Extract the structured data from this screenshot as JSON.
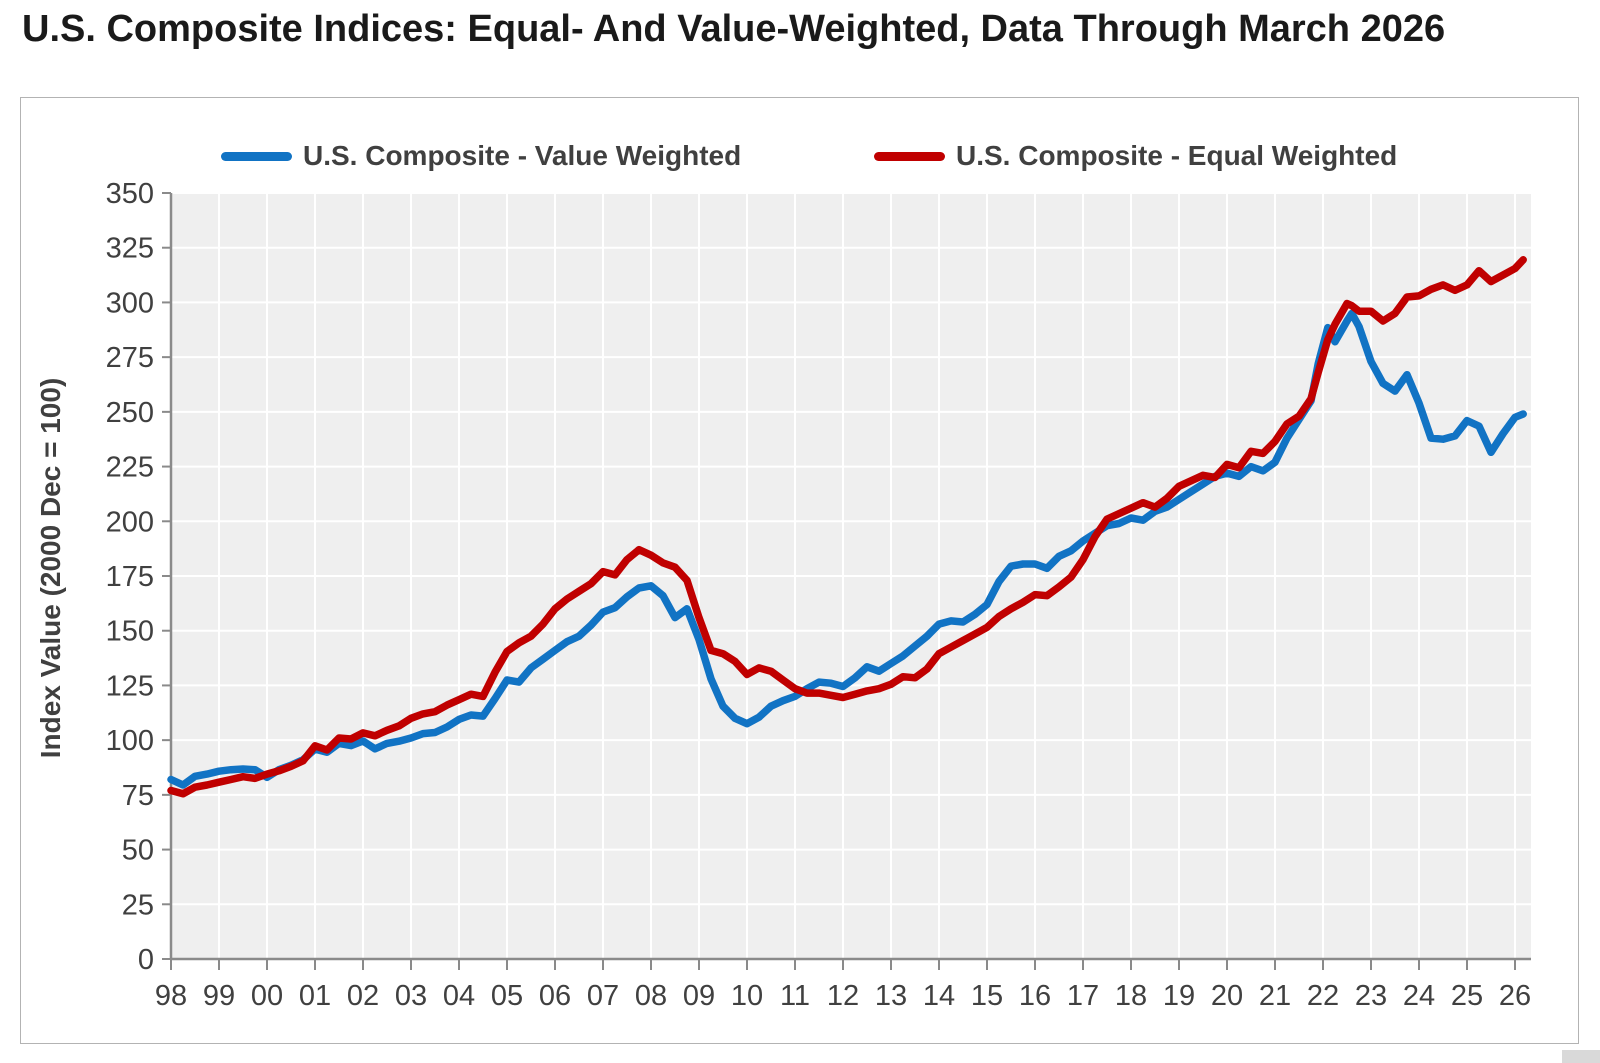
{
  "page": {
    "title": "U.S. Composite Indices: Equal- And Value-Weighted, Data Through March 2026"
  },
  "colors": {
    "value_weighted": "#1173c4",
    "equal_weighted": "#c00000",
    "plot_background": "#efefef",
    "gridline": "#ffffff",
    "axis": "#8a8a8a",
    "label_text": "#404040",
    "frame_border": "#b3b3b3"
  },
  "chart_data": {
    "type": "line",
    "title": "U.S. Composite Indices: Equal- And Value-Weighted, Data Through March 2026",
    "xlabel": "",
    "ylabel": "Index Value (2000 Dec = 100)",
    "ylim": [
      0,
      350
    ],
    "ytick_step": 25,
    "grid": true,
    "legend_position": "top",
    "plot_bg": "#efefef",
    "xticks": [
      {
        "y": 1998,
        "l": "98"
      },
      {
        "y": 1999,
        "l": "99"
      },
      {
        "y": 2000,
        "l": "00"
      },
      {
        "y": 2001,
        "l": "01"
      },
      {
        "y": 2002,
        "l": "02"
      },
      {
        "y": 2003,
        "l": "03"
      },
      {
        "y": 2004,
        "l": "04"
      },
      {
        "y": 2005,
        "l": "05"
      },
      {
        "y": 2006,
        "l": "06"
      },
      {
        "y": 2007,
        "l": "07"
      },
      {
        "y": 2008,
        "l": "08"
      },
      {
        "y": 2009,
        "l": "09"
      },
      {
        "y": 2010,
        "l": "10"
      },
      {
        "y": 2011,
        "l": "11"
      },
      {
        "y": 2012,
        "l": "12"
      },
      {
        "y": 2013,
        "l": "13"
      },
      {
        "y": 2014,
        "l": "14"
      },
      {
        "y": 2015,
        "l": "15"
      },
      {
        "y": 2016,
        "l": "16"
      },
      {
        "y": 2017,
        "l": "17"
      },
      {
        "y": 2018,
        "l": "18"
      },
      {
        "y": 2019,
        "l": "19"
      },
      {
        "y": 2020,
        "l": "20"
      },
      {
        "y": 2021,
        "l": "21"
      },
      {
        "y": 2022,
        "l": "22"
      },
      {
        "y": 2023,
        "l": "23"
      },
      {
        "y": 2024,
        "l": "24"
      },
      {
        "y": 2025,
        "l": "25"
      },
      {
        "y": 2026,
        "l": "26"
      }
    ],
    "x": [
      1998,
      1998.25,
      1998.5,
      1998.75,
      1999,
      1999.25,
      1999.5,
      1999.75,
      2000,
      2000.25,
      2000.5,
      2000.75,
      2001,
      2001.25,
      2001.5,
      2001.75,
      2002,
      2002.25,
      2002.5,
      2002.75,
      2003,
      2003.25,
      2003.5,
      2003.75,
      2004,
      2004.25,
      2004.5,
      2004.75,
      2005,
      2005.25,
      2005.5,
      2005.75,
      2006,
      2006.25,
      2006.5,
      2006.75,
      2007,
      2007.25,
      2007.5,
      2007.75,
      2008,
      2008.25,
      2008.5,
      2008.75,
      2009,
      2009.25,
      2009.5,
      2009.75,
      2010,
      2010.25,
      2010.5,
      2010.75,
      2011,
      2011.25,
      2011.5,
      2011.75,
      2012,
      2012.25,
      2012.5,
      2012.75,
      2013,
      2013.25,
      2013.5,
      2013.75,
      2014,
      2014.25,
      2014.5,
      2014.75,
      2015,
      2015.25,
      2015.5,
      2015.75,
      2016,
      2016.25,
      2016.5,
      2016.75,
      2017,
      2017.25,
      2017.5,
      2017.75,
      2018,
      2018.25,
      2018.5,
      2018.75,
      2019,
      2019.25,
      2019.5,
      2019.75,
      2020,
      2020.25,
      2020.5,
      2020.75,
      2021,
      2021.25,
      2021.5,
      2021.75,
      2021.9,
      2022.1,
      2022.25,
      2022.5,
      2022.6,
      2022.75,
      2023,
      2023.25,
      2023.5,
      2023.75,
      2024,
      2024.25,
      2024.5,
      2024.75,
      2025,
      2025.25,
      2025.5,
      2025.75,
      2026,
      2026.17
    ],
    "series": [
      {
        "name": "U.S. Composite - Value Weighted",
        "color": "#1173c4",
        "values": [
          82,
          79.5,
          83.5,
          84.5,
          85.8,
          86.5,
          86.8,
          86.5,
          83,
          86.5,
          88.5,
          91,
          95.9,
          94.5,
          98.5,
          97.5,
          99.6,
          96,
          98.5,
          99.5,
          101,
          103,
          103.5,
          106,
          109.5,
          111.5,
          111,
          119,
          127.5,
          126.5,
          133,
          137,
          141,
          145,
          147.5,
          152.5,
          158.5,
          160.5,
          165.5,
          169.5,
          170.5,
          166,
          156,
          160,
          146,
          128,
          115.5,
          110,
          107.5,
          110.5,
          115.5,
          118,
          120,
          123.5,
          126.5,
          126,
          124.5,
          128.5,
          133.5,
          131.5,
          135,
          138.5,
          143,
          147.5,
          153,
          154.5,
          154,
          157.5,
          162,
          172.5,
          179.5,
          180.5,
          180.5,
          178.5,
          184,
          186.5,
          191,
          194.5,
          198,
          199,
          201.5,
          200.5,
          204.5,
          206.5,
          210,
          213.5,
          217,
          220.5,
          222,
          220.5,
          225,
          223,
          227,
          238,
          246.5,
          255,
          272,
          288.5,
          282,
          291.5,
          295,
          289,
          273,
          263,
          259.5,
          267,
          254,
          238,
          237.5,
          239,
          246,
          243.5,
          231.5,
          240,
          247.5,
          249
        ]
      },
      {
        "name": "U.S. Composite - Equal Weighted",
        "color": "#c00000",
        "values": [
          77,
          75.5,
          78.5,
          79.5,
          80.8,
          82,
          83.3,
          82.5,
          84.5,
          86,
          88,
          90.5,
          97.4,
          95.5,
          101,
          100.5,
          103.3,
          102,
          104.5,
          106.5,
          110,
          112,
          113,
          116,
          118.5,
          121,
          120,
          131,
          140.5,
          144.5,
          147.5,
          153,
          160,
          164.5,
          168,
          171.5,
          177,
          175.5,
          182.5,
          187,
          184.5,
          181,
          179,
          173,
          156,
          141,
          139.5,
          136,
          130,
          133,
          131.5,
          127.5,
          123.5,
          121.5,
          121.5,
          120.5,
          119.5,
          121,
          122.5,
          123.5,
          125.5,
          129,
          128.5,
          132.5,
          139.5,
          142.5,
          145.5,
          148.5,
          151.5,
          156.5,
          160,
          163,
          166.5,
          166,
          170,
          174.5,
          182.5,
          193,
          201,
          203.5,
          206,
          208.5,
          206.5,
          210.5,
          216,
          218.5,
          221,
          220,
          226,
          224.5,
          232,
          231,
          236.5,
          244.5,
          248,
          256,
          268,
          283,
          290,
          299.5,
          298.5,
          296,
          296,
          291.5,
          295,
          302.5,
          303,
          306,
          308,
          305.5,
          308,
          314.5,
          309.5,
          312.5,
          315.5,
          319.5
        ]
      }
    ]
  }
}
